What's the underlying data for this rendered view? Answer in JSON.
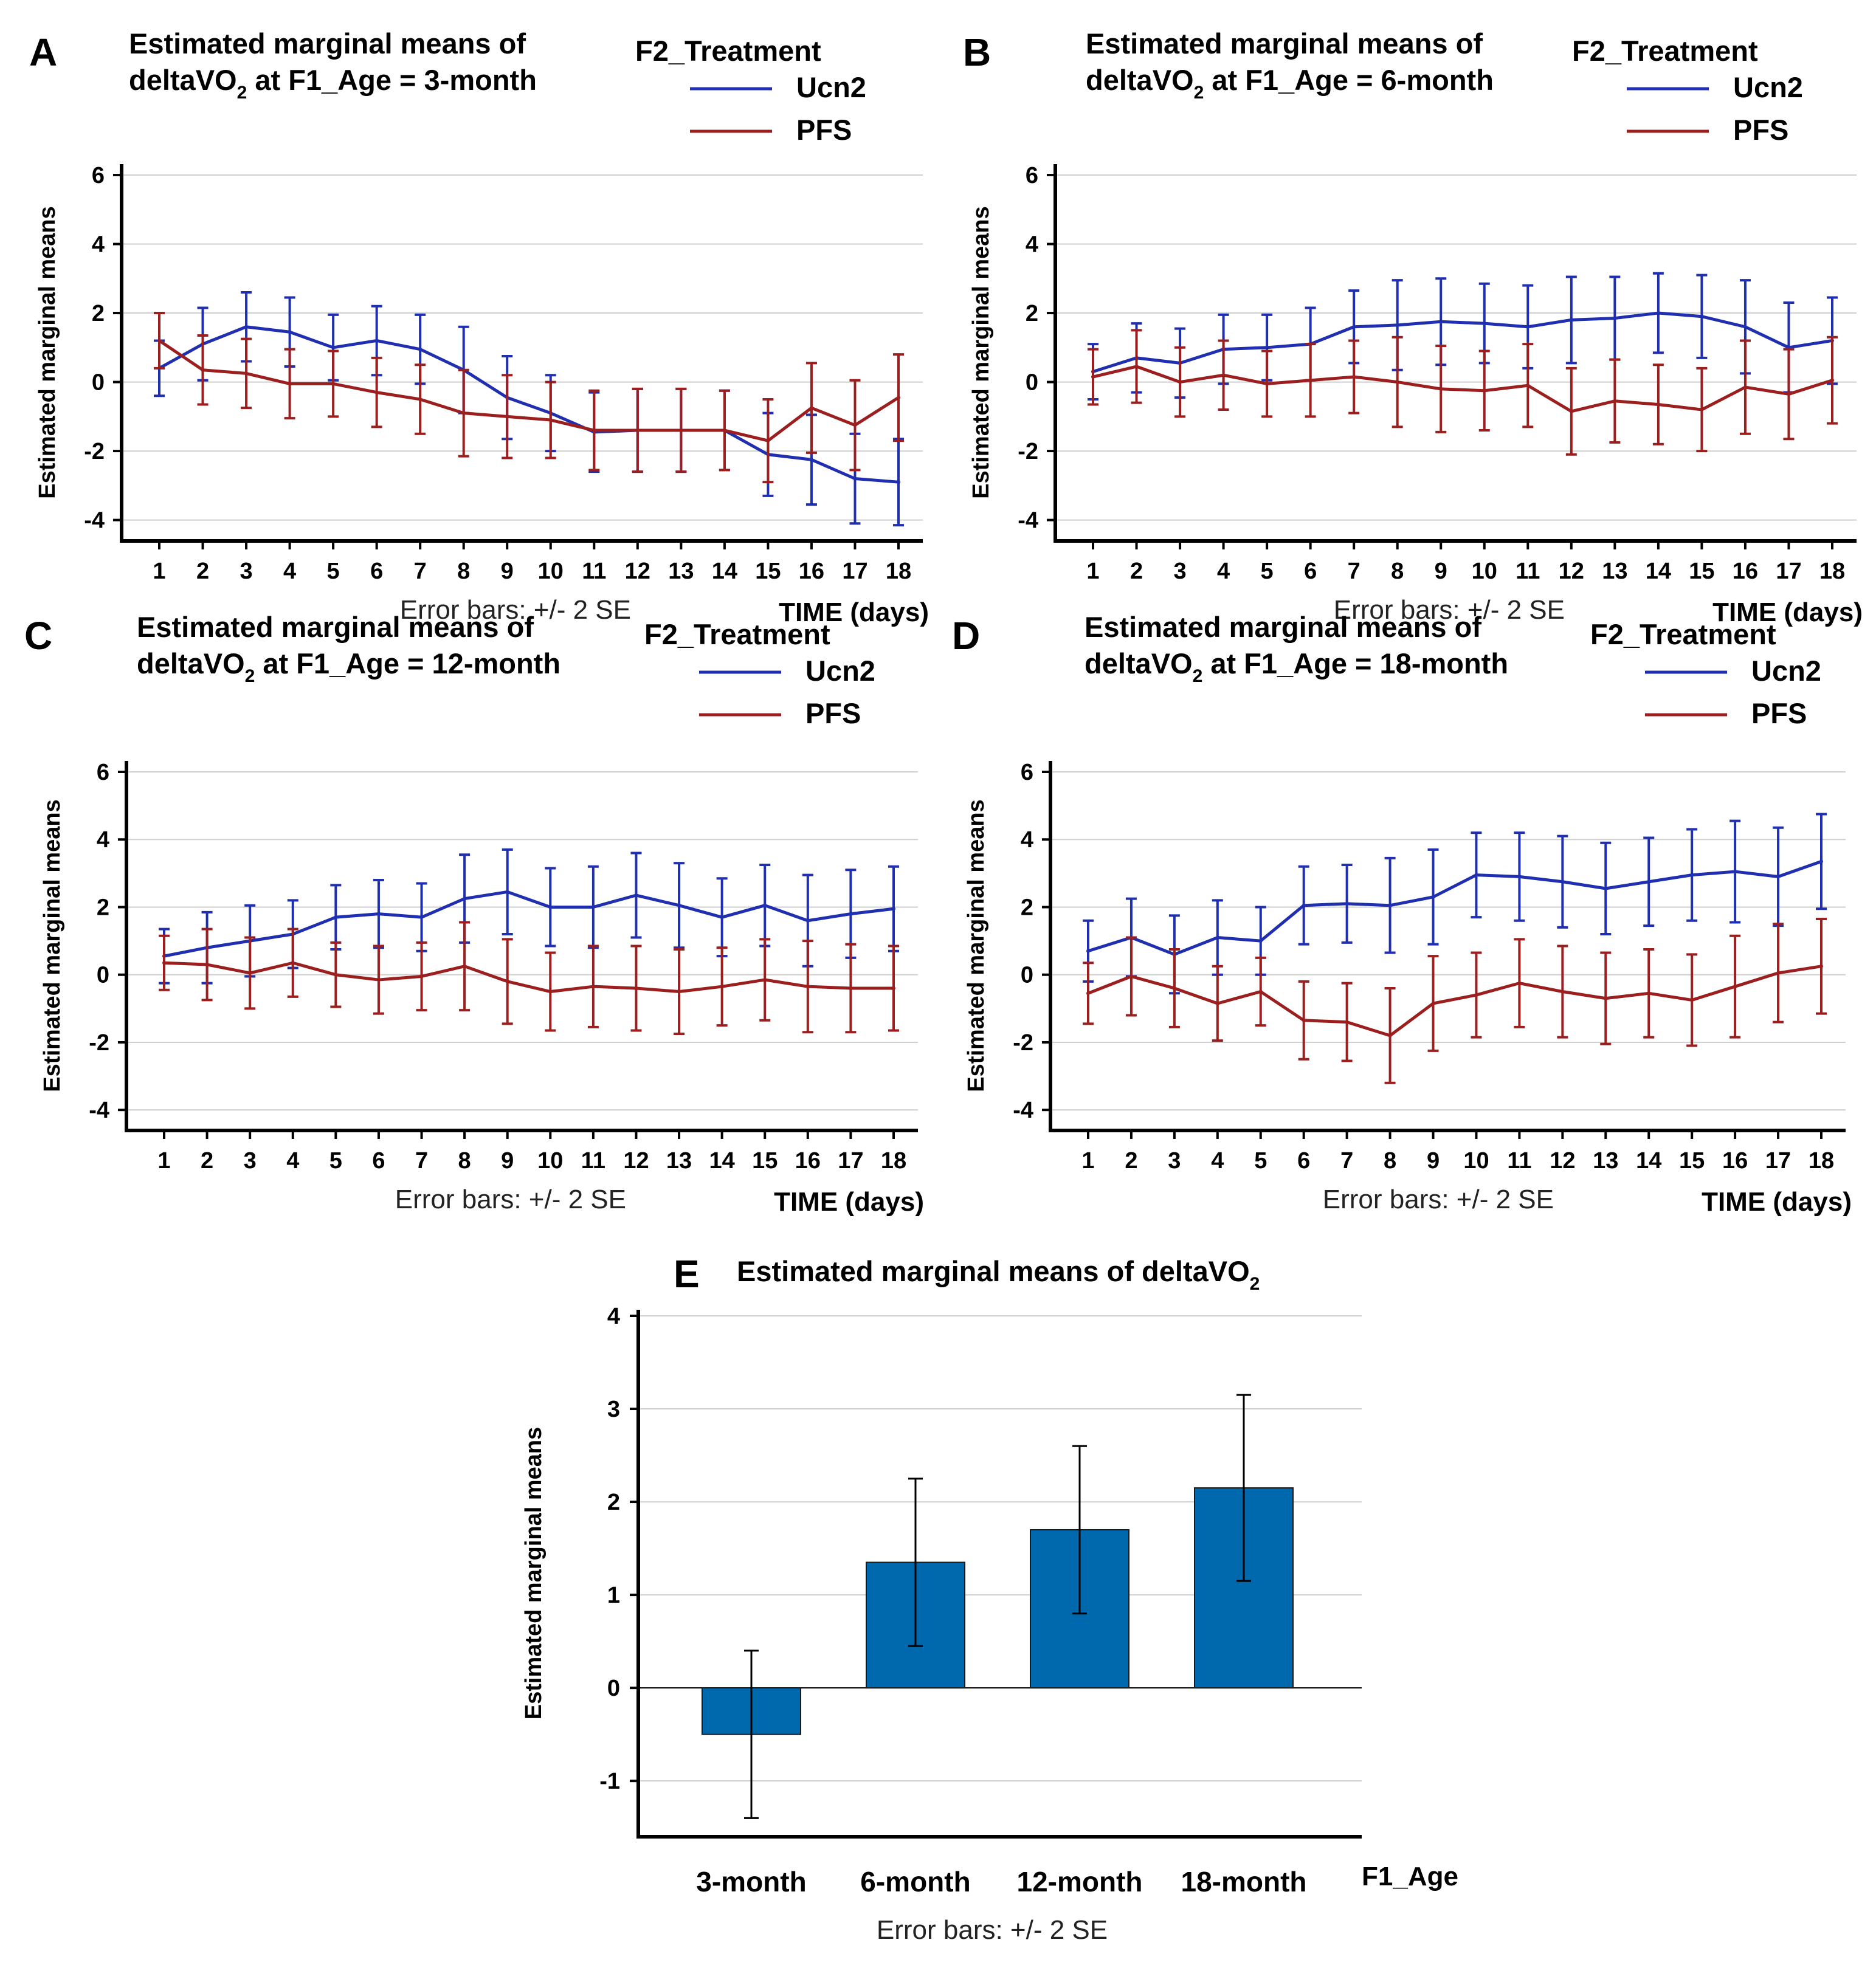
{
  "colors": {
    "ucn2": "#1f2fb0",
    "pfs": "#9c1f1f",
    "bar": "#0068ac",
    "grid": "#cfcfcf"
  },
  "chart_data": [
    {
      "type": "line",
      "panel": "A",
      "title": [
        "Estimated marginal means of",
        "deltaVO",
        "2",
        " at F1_Age = 3-month"
      ],
      "ylabel": "Estimated marginal means",
      "xlabel": "TIME (days)",
      "note": "Error bars: +/- 2 SE",
      "legend_title": "F2_Treatment",
      "ylim": [
        -4.5,
        6
      ],
      "yticks": [
        6,
        4,
        2,
        0,
        -2,
        -4
      ],
      "x": [
        1,
        2,
        3,
        4,
        5,
        6,
        7,
        8,
        9,
        10,
        11,
        12,
        13,
        14,
        15,
        16,
        17,
        18
      ],
      "series": [
        {
          "name": "Ucn2",
          "color_key": "ucn2",
          "values": [
            0.4,
            1.1,
            1.6,
            1.45,
            1.0,
            1.2,
            0.95,
            0.35,
            -0.45,
            -0.9,
            -1.45,
            -1.4,
            -1.4,
            -1.4,
            -2.1,
            -2.25,
            -2.8,
            -2.9
          ],
          "err": [
            0.8,
            1.05,
            1.0,
            1.0,
            0.95,
            1.0,
            1.0,
            1.25,
            1.2,
            1.1,
            1.15,
            1.2,
            1.2,
            1.15,
            1.2,
            1.3,
            1.3,
            1.25
          ]
        },
        {
          "name": "PFS",
          "color_key": "pfs",
          "values": [
            1.2,
            0.35,
            0.25,
            -0.05,
            -0.05,
            -0.3,
            -0.5,
            -0.9,
            -1.0,
            -1.1,
            -1.4,
            -1.4,
            -1.4,
            -1.4,
            -1.7,
            -0.75,
            -1.25,
            -0.45
          ],
          "err": [
            0.8,
            1.0,
            1.0,
            1.0,
            0.95,
            1.0,
            1.0,
            1.25,
            1.2,
            1.1,
            1.15,
            1.2,
            1.2,
            1.15,
            1.2,
            1.3,
            1.3,
            1.25
          ]
        }
      ]
    },
    {
      "type": "line",
      "panel": "B",
      "title": [
        "Estimated marginal means of",
        "deltaVO",
        "2",
        " at F1_Age = 6-month"
      ],
      "ylabel": "Estimated marginal means",
      "xlabel": "TIME (days)",
      "note": "Error bars: +/- 2 SE",
      "legend_title": "F2_Treatment",
      "ylim": [
        -4.5,
        6
      ],
      "yticks": [
        6,
        4,
        2,
        0,
        -2,
        -4
      ],
      "x": [
        1,
        2,
        3,
        4,
        5,
        6,
        7,
        8,
        9,
        10,
        11,
        12,
        13,
        14,
        15,
        16,
        17,
        18
      ],
      "series": [
        {
          "name": "Ucn2",
          "color_key": "ucn2",
          "values": [
            0.3,
            0.7,
            0.55,
            0.95,
            1.0,
            1.1,
            1.6,
            1.65,
            1.75,
            1.7,
            1.6,
            1.8,
            1.85,
            2.0,
            1.9,
            1.6,
            1.0,
            1.2
          ],
          "err": [
            0.8,
            1.0,
            1.0,
            1.0,
            0.95,
            1.05,
            1.05,
            1.3,
            1.25,
            1.15,
            1.2,
            1.25,
            1.2,
            1.15,
            1.2,
            1.35,
            1.3,
            1.25
          ]
        },
        {
          "name": "PFS",
          "color_key": "pfs",
          "values": [
            0.15,
            0.45,
            0.0,
            0.2,
            -0.05,
            0.05,
            0.15,
            0.0,
            -0.2,
            -0.25,
            -0.1,
            -0.85,
            -0.55,
            -0.65,
            -0.8,
            -0.15,
            -0.35,
            0.05
          ],
          "err": [
            0.8,
            1.05,
            1.0,
            1.0,
            0.95,
            1.05,
            1.05,
            1.3,
            1.25,
            1.15,
            1.2,
            1.25,
            1.2,
            1.15,
            1.2,
            1.35,
            1.3,
            1.25
          ]
        }
      ]
    },
    {
      "type": "line",
      "panel": "C",
      "title": [
        "Estimated marginal means of",
        "deltaVO",
        "2",
        " at F1_Age = 12-month"
      ],
      "ylabel": "Estimated marginal means",
      "xlabel": "TIME (days)",
      "note": "Error bars: +/- 2 SE",
      "legend_title": "F2_Treatment",
      "ylim": [
        -4.5,
        6
      ],
      "yticks": [
        6,
        4,
        2,
        0,
        -2,
        -4
      ],
      "x": [
        1,
        2,
        3,
        4,
        5,
        6,
        7,
        8,
        9,
        10,
        11,
        12,
        13,
        14,
        15,
        16,
        17,
        18
      ],
      "series": [
        {
          "name": "Ucn2",
          "color_key": "ucn2",
          "values": [
            0.55,
            0.8,
            1.0,
            1.2,
            1.7,
            1.8,
            1.7,
            2.25,
            2.45,
            2.0,
            2.0,
            2.35,
            2.05,
            1.7,
            2.05,
            1.6,
            1.8,
            1.95
          ],
          "err": [
            0.8,
            1.05,
            1.05,
            1.0,
            0.95,
            1.0,
            1.0,
            1.3,
            1.25,
            1.15,
            1.2,
            1.25,
            1.25,
            1.15,
            1.2,
            1.35,
            1.3,
            1.25
          ]
        },
        {
          "name": "PFS",
          "color_key": "pfs",
          "values": [
            0.35,
            0.3,
            0.05,
            0.35,
            0.0,
            -0.15,
            -0.05,
            0.25,
            -0.2,
            -0.5,
            -0.35,
            -0.4,
            -0.5,
            -0.35,
            -0.15,
            -0.35,
            -0.4,
            -0.4
          ],
          "err": [
            0.8,
            1.05,
            1.05,
            1.0,
            0.95,
            1.0,
            1.0,
            1.3,
            1.25,
            1.15,
            1.2,
            1.25,
            1.25,
            1.15,
            1.2,
            1.35,
            1.3,
            1.25
          ]
        }
      ]
    },
    {
      "type": "line",
      "panel": "D",
      "title": [
        "Estimated marginal means of",
        "deltaVO",
        "2",
        " at F1_Age = 18-month"
      ],
      "ylabel": "Estimated marginal means",
      "xlabel": "TIME (days)",
      "note": "Error bars: +/- 2 SE",
      "legend_title": "F2_Treatment",
      "ylim": [
        -4.5,
        6
      ],
      "yticks": [
        6,
        4,
        2,
        0,
        -2,
        -4
      ],
      "x": [
        1,
        2,
        3,
        4,
        5,
        6,
        7,
        8,
        9,
        10,
        11,
        12,
        13,
        14,
        15,
        16,
        17,
        18
      ],
      "series": [
        {
          "name": "Ucn2",
          "color_key": "ucn2",
          "values": [
            0.7,
            1.1,
            0.6,
            1.1,
            1.0,
            2.05,
            2.1,
            2.05,
            2.3,
            2.95,
            2.9,
            2.75,
            2.55,
            2.75,
            2.95,
            3.05,
            2.9,
            3.35
          ],
          "err": [
            0.9,
            1.15,
            1.15,
            1.1,
            1.0,
            1.15,
            1.15,
            1.4,
            1.4,
            1.25,
            1.3,
            1.35,
            1.35,
            1.3,
            1.35,
            1.5,
            1.45,
            1.4
          ]
        },
        {
          "name": "PFS",
          "color_key": "pfs",
          "values": [
            -0.55,
            -0.05,
            -0.4,
            -0.85,
            -0.5,
            -1.35,
            -1.4,
            -1.8,
            -0.85,
            -0.6,
            -0.25,
            -0.5,
            -0.7,
            -0.55,
            -0.75,
            -0.35,
            0.05,
            0.25
          ],
          "err": [
            0.9,
            1.15,
            1.15,
            1.1,
            1.0,
            1.15,
            1.15,
            1.4,
            1.4,
            1.25,
            1.3,
            1.35,
            1.35,
            1.3,
            1.35,
            1.5,
            1.45,
            1.4
          ]
        }
      ]
    },
    {
      "type": "bar",
      "panel": "E",
      "title": [
        "Estimated marginal means of deltaVO",
        "2"
      ],
      "ylabel": "Estimated marginal means",
      "xlabel": "F1_Age",
      "note": "Error bars: +/- 2 SE",
      "categories": [
        "3-month",
        "6-month",
        "12-month",
        "18-month"
      ],
      "values": [
        -0.5,
        1.35,
        1.7,
        2.15
      ],
      "err": [
        0.9,
        0.9,
        0.9,
        1.0
      ],
      "ylim": [
        -1.6,
        4
      ],
      "yticks": [
        4,
        3,
        2,
        1,
        0,
        -1
      ]
    }
  ]
}
